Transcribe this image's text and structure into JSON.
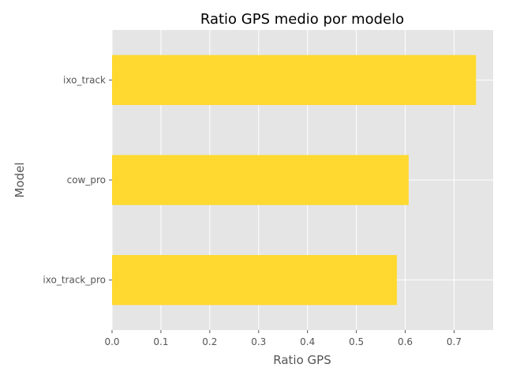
{
  "chart_data": {
    "type": "bar",
    "orientation": "horizontal",
    "title": "Ratio GPS medio por modelo",
    "xlabel": "Ratio GPS",
    "ylabel": "Model",
    "categories": [
      "ixo_track",
      "cow_pro",
      "ixo_track_pro"
    ],
    "values": [
      0.745,
      0.607,
      0.583
    ],
    "xlim": [
      0,
      0.78
    ],
    "xticks": [
      0.0,
      0.1,
      0.2,
      0.3,
      0.4,
      0.5,
      0.6,
      0.7
    ],
    "xtick_labels": [
      "0.0",
      "0.1",
      "0.2",
      "0.3",
      "0.4",
      "0.5",
      "0.6",
      "0.7"
    ],
    "grid": true,
    "legend": "none",
    "colors": {
      "bar": "#FFD92F",
      "plot_background": "#E5E5E5",
      "grid": "#FFFFFF",
      "text": "#555555"
    }
  }
}
